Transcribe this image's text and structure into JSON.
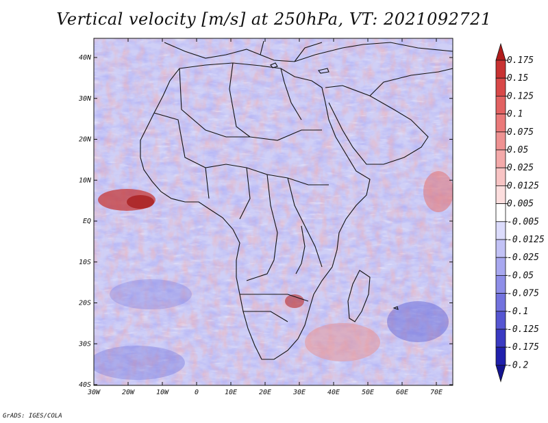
{
  "title": "Vertical velocity [m/s] at 250hPa, VT: 2021092721",
  "credit": "GrADS: IGES/COLA",
  "map": {
    "lat_labels": [
      "40N",
      "30N",
      "20N",
      "10N",
      "EQ",
      "10S",
      "20S",
      "30S",
      "40S"
    ],
    "lon_labels": [
      "30W",
      "20W",
      "10W",
      "0",
      "10E",
      "20E",
      "30E",
      "40E",
      "50E",
      "60E",
      "70E"
    ],
    "region": "Africa",
    "field": "vertical velocity"
  },
  "colorbar": {
    "labels": [
      "0.175",
      "0.15",
      "0.125",
      "0.1",
      "0.075",
      "0.05",
      "0.025",
      "0.0125",
      "0.005",
      "-0.005",
      "-0.0125",
      "-0.025",
      "-0.05",
      "-0.075",
      "-0.1",
      "-0.125",
      "-0.175",
      "-0.2"
    ],
    "colors": [
      "#b01c1c",
      "#c83232",
      "#d84848",
      "#e26262",
      "#ea7a7a",
      "#ef9292",
      "#f4aaaa",
      "#f8c4c4",
      "#fcdede",
      "#ffffff",
      "#dcdcfc",
      "#c2c2f6",
      "#a8a8f0",
      "#8e8ee8",
      "#7272de",
      "#5656d2",
      "#3a3ac2",
      "#2020ac",
      "#141490"
    ]
  }
}
